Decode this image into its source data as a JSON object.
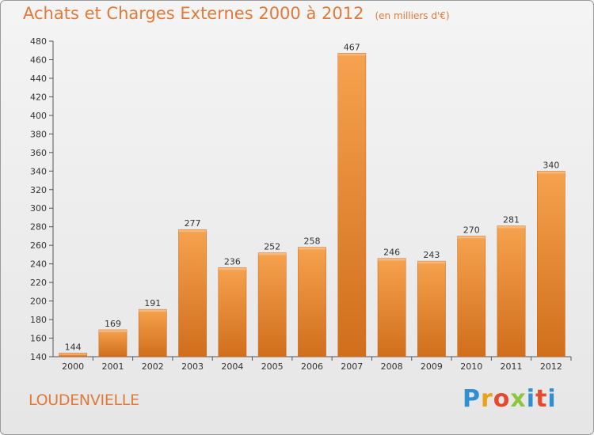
{
  "header": {
    "title": "Achats et Charges Externes 2000 à 2012",
    "unit": "(en milliers d'€)"
  },
  "footer": {
    "commune": "LOUDENVIELLE",
    "brand": "Proxiti"
  },
  "colors": {
    "accent": "#e07a3a",
    "bar_top": "#f6a24e",
    "bar_bottom": "#d06e1c"
  },
  "chart_data": {
    "type": "bar",
    "title": "Achats et Charges Externes 2000 à 2012",
    "subtitle": "(en milliers d'€)",
    "xlabel": "",
    "ylabel": "",
    "categories": [
      "2000",
      "2001",
      "2002",
      "2003",
      "2004",
      "2005",
      "2006",
      "2007",
      "2008",
      "2009",
      "2010",
      "2011",
      "2012"
    ],
    "values": [
      144,
      169,
      191,
      277,
      236,
      252,
      258,
      467,
      246,
      243,
      270,
      281,
      340
    ],
    "ylim": [
      140,
      480
    ],
    "yticks": [
      140,
      160,
      180,
      200,
      220,
      240,
      260,
      280,
      300,
      320,
      340,
      360,
      380,
      400,
      420,
      440,
      460,
      480
    ],
    "grid": false,
    "legend": "none"
  }
}
